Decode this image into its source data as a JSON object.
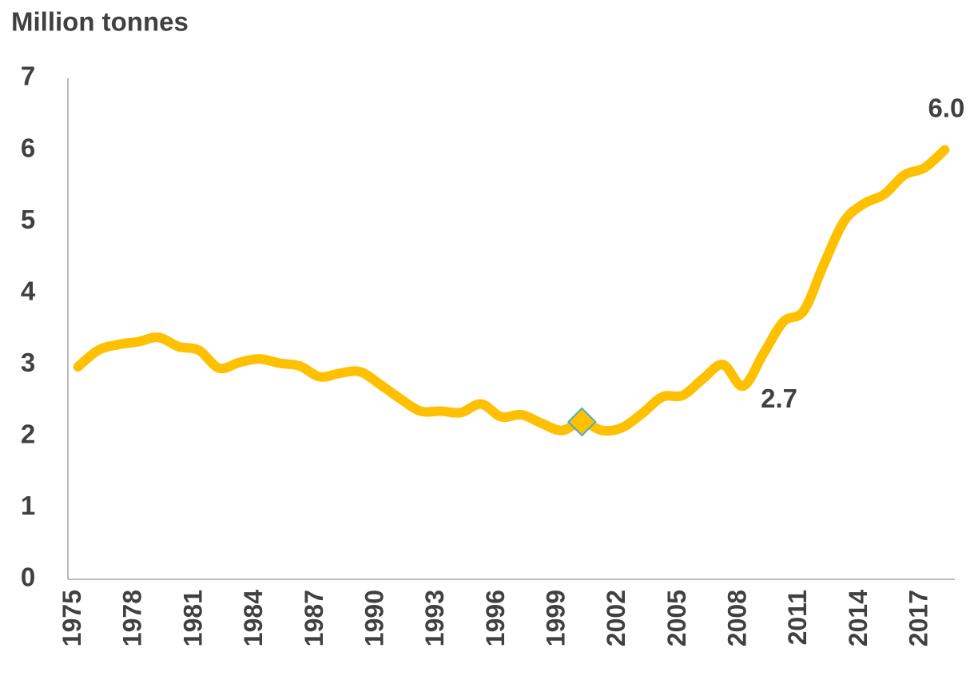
{
  "chart_data": {
    "type": "line",
    "ylabel": "Million tonnes",
    "categories": [
      "1975",
      null,
      null,
      "1978",
      null,
      null,
      "1981",
      null,
      null,
      "1984",
      null,
      null,
      "1987",
      null,
      null,
      "1990",
      null,
      null,
      "1993",
      null,
      null,
      "1996",
      null,
      null,
      "1999",
      null,
      null,
      "2002",
      null,
      null,
      "2005",
      null,
      null,
      "2008",
      null,
      null,
      "2011",
      null,
      null,
      "2014",
      null,
      null,
      "2017",
      null
    ],
    "series": [
      {
        "color": "#ffc000",
        "values": [
          2.97,
          3.2,
          3.28,
          3.32,
          3.38,
          3.25,
          3.2,
          2.95,
          3.03,
          3.08,
          3.02,
          2.98,
          2.83,
          2.88,
          2.9,
          2.72,
          2.52,
          2.35,
          2.35,
          2.33,
          2.45,
          2.27,
          2.3,
          2.18,
          2.08,
          2.2,
          2.08,
          2.12,
          2.32,
          2.55,
          2.57,
          2.8,
          3.0,
          2.7,
          3.15,
          3.6,
          3.75,
          4.4,
          5.0,
          5.25,
          5.38,
          5.65,
          5.75,
          6.0
        ],
        "value_labels": [
          null,
          null,
          null,
          null,
          null,
          null,
          null,
          null,
          null,
          null,
          null,
          null,
          null,
          null,
          null,
          null,
          null,
          null,
          null,
          null,
          null,
          null,
          null,
          null,
          null,
          null,
          null,
          null,
          null,
          null,
          null,
          null,
          null,
          "2.7",
          null,
          null,
          null,
          null,
          null,
          null,
          null,
          null,
          null,
          "6.0"
        ]
      }
    ],
    "highlight_index": 25,
    "ylim": [
      0,
      7
    ],
    "yticks": [
      0,
      1,
      2,
      3,
      4,
      5,
      6,
      7
    ],
    "grid": false
  }
}
